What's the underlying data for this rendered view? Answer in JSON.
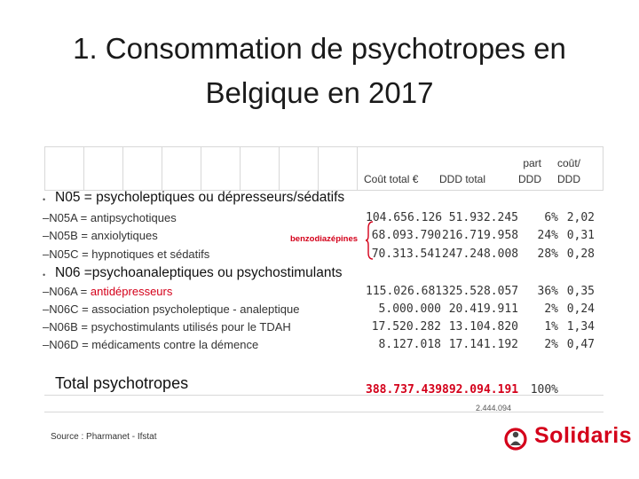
{
  "title_line1": "1. Consommation de psychotropes en",
  "title_line2": "Belgique en 2017",
  "headers": {
    "cout_total": "Coût total €",
    "ddd_total": "DDD total",
    "part_line1": "part",
    "part_line2": "DDD",
    "cout_line1": "coût/",
    "cout_line2": "DDD"
  },
  "section1": {
    "bullet": "•",
    "title": "N05 = psycholeptiques ou dépresseurs/sédatifs",
    "note": "benzodiazépines",
    "rows": [
      {
        "dash": "–",
        "code": "N05A = ",
        "label": "antipsychotiques",
        "cost": "104.656.126",
        "ddd": "51.932.245",
        "part": "6%",
        "cddd": "2,02"
      },
      {
        "dash": "–",
        "code": "N05B = ",
        "label": "anxiolytiques",
        "cost": "68.093.790",
        "ddd": "216.719.958",
        "part": "24%",
        "cddd": "0,31"
      },
      {
        "dash": "–",
        "code": "N05C = ",
        "label": "hypnotiques et sédatifs",
        "cost": "70.313.541",
        "ddd": "247.248.008",
        "part": "28%",
        "cddd": "0,28"
      }
    ]
  },
  "section2": {
    "bullet": "•",
    "title": "N06 =psychoanaleptiques ou psychostimulants",
    "rows": [
      {
        "dash": "–",
        "code": "N06A = ",
        "label": "antidépresseurs",
        "cost": "115.026.681",
        "ddd": "325.528.057",
        "part": "36%",
        "cddd": "0,35"
      },
      {
        "dash": "–",
        "code": "N06C = ",
        "label": "association psycholeptique - analeptique",
        "cost": "5.000.000",
        "ddd": "20.419.911",
        "part": "2%",
        "cddd": "0,24"
      },
      {
        "dash": "–",
        "code": "N06B = ",
        "label": "psychostimulants utilisés pour le TDAH",
        "cost": "17.520.282",
        "ddd": "13.104.820",
        "part": "1%",
        "cddd": "1,34"
      },
      {
        "dash": "–",
        "code": "N06D = ",
        "label": "médicaments contre la démence",
        "cost": "8.127.018",
        "ddd": "17.141.192",
        "part": "2%",
        "cddd": "0,47"
      }
    ]
  },
  "total": {
    "label": "Total psychotropes",
    "cost": "388.737.439",
    "ddd": "892.094.191",
    "part": "100%",
    "note": "2.444.094"
  },
  "source": "Source : Pharmanet - Ifstat",
  "logo": {
    "text": "Solidaris",
    "icon": "solidaris-person-icon",
    "color": "#d4001a"
  },
  "colors": {
    "accent": "#d4001a"
  }
}
